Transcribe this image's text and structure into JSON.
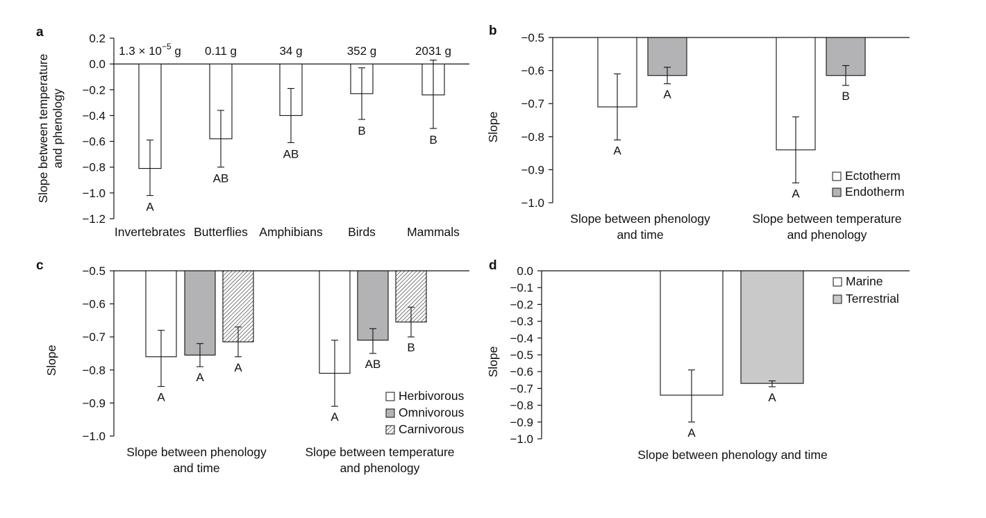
{
  "styles": {
    "white_fill": "#ffffff",
    "dark_grey_fill": "#b3b3b5",
    "light_grey_fill": "#c9c9ca",
    "stroke": "#111111",
    "hatch_pattern": "diagonal-hatch"
  },
  "chart_data": [
    {
      "panel": "a",
      "type": "bar",
      "ylabel_lines": [
        "Slope between temperature",
        "and phenology"
      ],
      "ylim": [
        -1.2,
        0.2
      ],
      "yticks": [
        "0.2",
        "0.0",
        "−0.2",
        "−0.4",
        "−0.6",
        "−0.8",
        "−1.0",
        "−1.2"
      ],
      "categories": [
        "Invertebrates",
        "Butterflies",
        "Amphibians",
        "Birds",
        "Mammals"
      ],
      "mass_labels": [
        "1.3 × 10",
        "0.11 g",
        "34 g",
        "352 g",
        "2031 g"
      ],
      "mass_superscript": "−5",
      "mass_suffix": " g",
      "series": [
        {
          "values": [
            -0.81,
            -0.58,
            -0.4,
            -0.23,
            -0.24
          ],
          "err_low": [
            -1.02,
            -0.8,
            -0.61,
            -0.43,
            -0.5
          ],
          "err_high": [
            -0.59,
            -0.36,
            -0.19,
            -0.03,
            0.03
          ],
          "sig_letters": [
            "A",
            "AB",
            "AB",
            "B",
            "B"
          ]
        }
      ],
      "grid": false
    },
    {
      "panel": "b",
      "type": "bar",
      "ylabel": "Slope",
      "ylim": [
        -1.0,
        -0.5
      ],
      "yticks": [
        "−0.5",
        "−0.6",
        "−0.7",
        "−0.8",
        "−0.9",
        "−1.0"
      ],
      "group_labels": [
        [
          "Slope between phenology",
          "and time"
        ],
        [
          "Slope between temperature",
          "and phenology"
        ]
      ],
      "series": [
        {
          "name": "Ectotherm",
          "values": [
            -0.71,
            -0.84
          ],
          "err_low": [
            -0.81,
            -0.94
          ],
          "err_high": [
            -0.61,
            -0.74
          ],
          "sig_letters": [
            "A",
            "A"
          ]
        },
        {
          "name": "Endotherm",
          "values": [
            -0.615,
            -0.615
          ],
          "err_low": [
            -0.64,
            -0.645
          ],
          "err_high": [
            -0.59,
            -0.585
          ],
          "sig_letters": [
            "A",
            "B"
          ]
        }
      ],
      "legend_position": "bottom-right",
      "grid": false
    },
    {
      "panel": "c",
      "type": "bar",
      "ylabel": "Slope",
      "ylim": [
        -1.0,
        -0.5
      ],
      "yticks": [
        "−0.5",
        "−0.6",
        "−0.7",
        "−0.8",
        "−0.9",
        "−1.0"
      ],
      "group_labels": [
        [
          "Slope between phenology",
          "and time"
        ],
        [
          "Slope between temperature",
          "and phenology"
        ]
      ],
      "series": [
        {
          "name": "Herbivorous",
          "values": [
            -0.76,
            -0.81
          ],
          "err_low": [
            -0.85,
            -0.91
          ],
          "err_high": [
            -0.68,
            -0.71
          ],
          "sig_letters": [
            "A",
            "A"
          ]
        },
        {
          "name": "Omnivorous",
          "values": [
            -0.755,
            -0.71
          ],
          "err_low": [
            -0.79,
            -0.75
          ],
          "err_high": [
            -0.72,
            -0.675
          ],
          "sig_letters": [
            "A",
            "AB"
          ]
        },
        {
          "name": "Carnivorous",
          "values": [
            -0.715,
            -0.655
          ],
          "err_low": [
            -0.76,
            -0.7
          ],
          "err_high": [
            -0.67,
            -0.61
          ],
          "sig_letters": [
            "A",
            "B"
          ]
        }
      ],
      "legend_position": "bottom-right",
      "grid": false
    },
    {
      "panel": "d",
      "type": "bar",
      "ylabel": "Slope",
      "ylim": [
        -1.0,
        0.0
      ],
      "yticks": [
        "0.0",
        "−0.1",
        "−0.2",
        "−0.3",
        "−0.4",
        "−0.5",
        "−0.6",
        "−0.7",
        "−0.8",
        "−0.9",
        "−1.0"
      ],
      "group_labels": [
        [
          "Slope between phenology and time"
        ]
      ],
      "series": [
        {
          "name": "Marine",
          "values": [
            -0.74
          ],
          "err_low": [
            -0.9
          ],
          "err_high": [
            -0.59
          ],
          "sig_letters": [
            "A"
          ]
        },
        {
          "name": "Terrestrial",
          "values": [
            -0.67
          ],
          "err_low": [
            -0.69
          ],
          "err_high": [
            -0.655
          ],
          "sig_letters": [
            "A"
          ]
        }
      ],
      "legend_position": "top-right",
      "grid": false
    }
  ]
}
